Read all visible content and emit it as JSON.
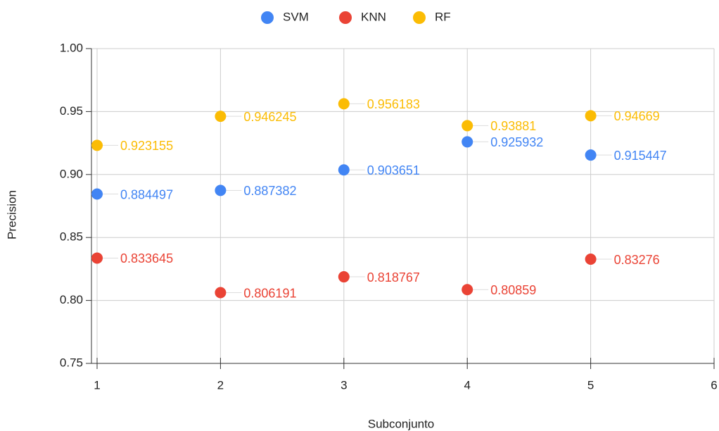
{
  "chart_data": {
    "type": "scatter",
    "xlabel": "Subconjunto",
    "ylabel": "Precision",
    "x": [
      1,
      2,
      3,
      4,
      5
    ],
    "series": [
      {
        "name": "SVM",
        "color": "#4285f4",
        "values": [
          0.884497,
          0.887382,
          0.903651,
          0.925932,
          0.915447
        ]
      },
      {
        "name": "KNN",
        "color": "#ea4335",
        "values": [
          0.833645,
          0.806191,
          0.818767,
          0.80859,
          0.83276
        ]
      },
      {
        "name": "RF",
        "color": "#fbbc04",
        "values": [
          0.923155,
          0.946245,
          0.956183,
          0.93881,
          0.94669
        ]
      }
    ],
    "xlim": [
      1,
      6
    ],
    "xticks": [
      1,
      2,
      3,
      4,
      5,
      6
    ],
    "ylim": [
      0.75,
      1.0
    ],
    "yticks": [
      0.75,
      {
        "value": 0.8,
        "label": "0.80"
      },
      0.85,
      {
        "value": 0.9,
        "label": "0.90"
      },
      0.95,
      {
        "value": 1.0,
        "label": "1.00"
      }
    ],
    "grid": true,
    "legend": "top"
  }
}
